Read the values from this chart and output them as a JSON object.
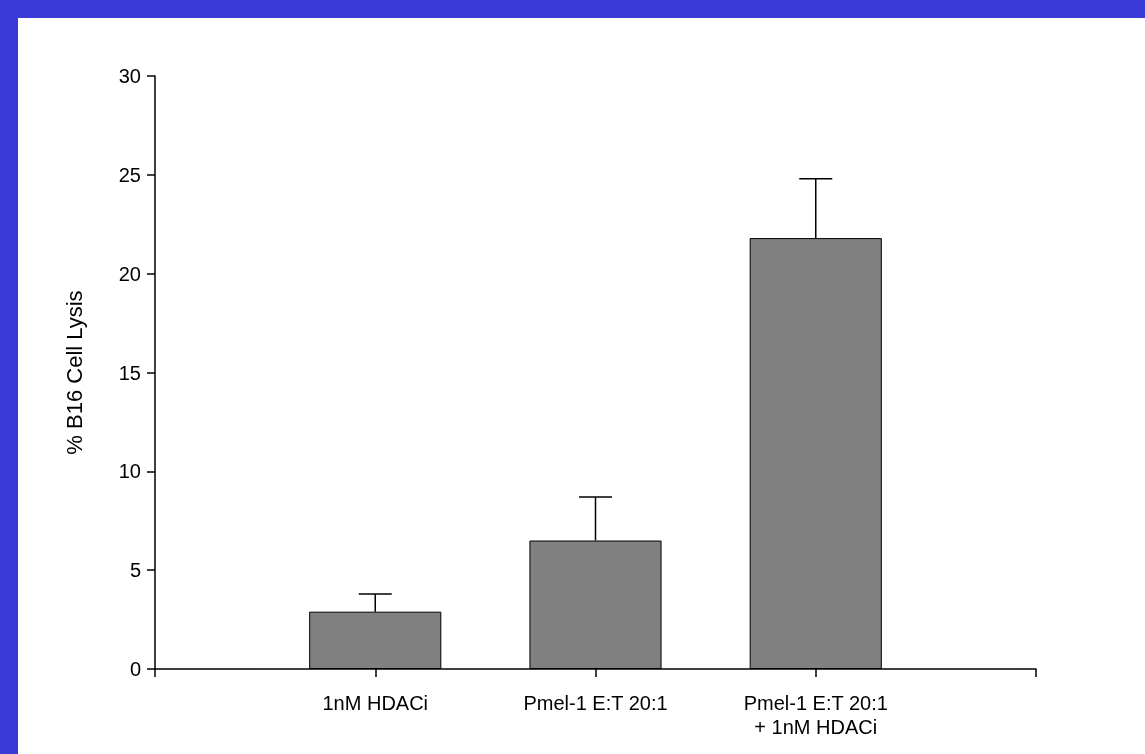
{
  "chart_data": {
    "type": "bar",
    "ylabel": "% B16 Cell Lysis",
    "categories": [
      null,
      "1nM HDACi",
      "Pmel-1 E:T 20:1",
      "Pmel-1 E:T 20:1\n+ 1nM HDACi",
      null
    ],
    "values": [
      null,
      2.9,
      6.5,
      21.8,
      null
    ],
    "errors": [
      null,
      [
        2.9,
        3.8
      ],
      [
        6.5,
        8.7
      ],
      [
        21.8,
        24.8
      ],
      null
    ],
    "color": "#808080",
    "ylim": [
      0,
      30
    ],
    "yticks": [
      0,
      5,
      10,
      15,
      20,
      25,
      30
    ],
    "grid": false
  }
}
